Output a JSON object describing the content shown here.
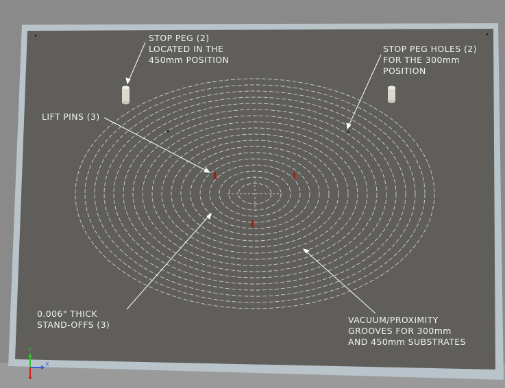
{
  "annotations": {
    "stop_peg": [
      "STOP PEG (2)",
      "LOCATED IN THE",
      "450mm POSITION"
    ],
    "stop_peg_holes": [
      "STOP PEG HOLES (2)",
      "FOR THE 300mm",
      "POSITION"
    ],
    "lift_pins": [
      "LIFT PINS (3)"
    ],
    "standoffs": [
      "0.006\" THICK",
      "STAND-OFFS (3)"
    ],
    "grooves": [
      "VACUUM/PROXIMITY",
      "GROOVES FOR 300mm",
      "AND 450mm SUBSTRATES"
    ]
  },
  "triad": {
    "x_label": "X",
    "y_label": "Y"
  },
  "colors": {
    "background": "#8a8a8a",
    "frame": "#b9c4ca",
    "plate": "#5f5e5b",
    "grooves": "#cfcfcf",
    "pins": "#a01c1c",
    "text": "#f2f2f2"
  }
}
